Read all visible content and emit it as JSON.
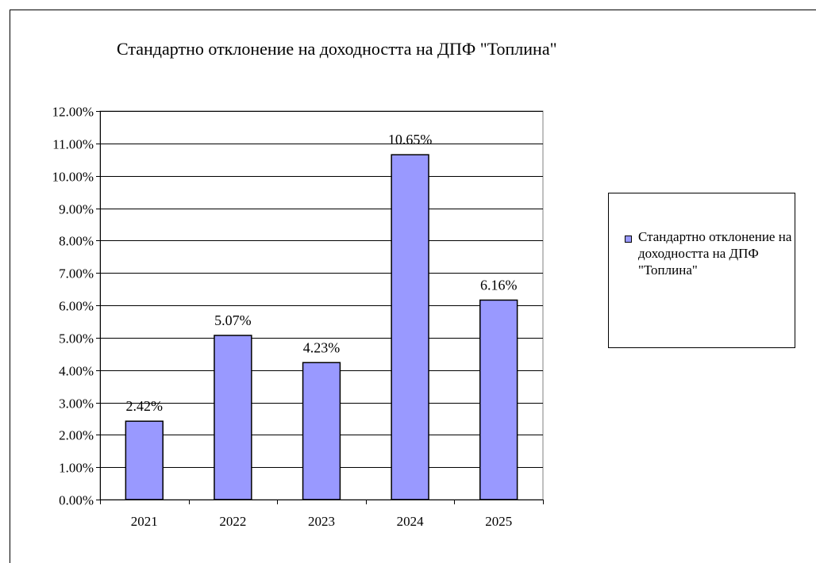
{
  "chart_data": {
    "type": "bar",
    "title": "Стандартно отклонение на доходността на ДПФ \"Топлина\"",
    "categories": [
      "2021",
      "2022",
      "2023",
      "2024",
      "2025"
    ],
    "series": [
      {
        "name": "Стандартно отклонение на доходността на ДПФ \"Топлина\"",
        "values": [
          2.42,
          5.07,
          4.23,
          10.65,
          6.16
        ],
        "data_labels": [
          "2.42%",
          "5.07%",
          "4.23%",
          "10.65%",
          "6.16%"
        ],
        "color": "#9999ff"
      }
    ],
    "y_ticks": [
      "0.00%",
      "1.00%",
      "2.00%",
      "3.00%",
      "4.00%",
      "5.00%",
      "6.00%",
      "7.00%",
      "8.00%",
      "9.00%",
      "10.00%",
      "11.00%",
      "12.00%"
    ],
    "ylim": [
      0,
      12
    ],
    "xlabel": "",
    "ylabel": "",
    "grid": true,
    "legend_position": "right",
    "plot_background": "#ffffff",
    "border_color": "#808080",
    "gridline_color": "#000000"
  }
}
